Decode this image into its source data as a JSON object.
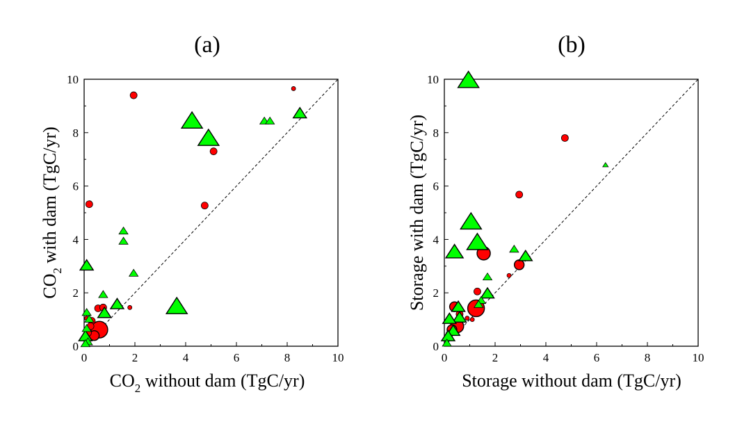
{
  "chart_data": [
    {
      "type": "scatter",
      "panel_label": "(a)",
      "xlabel_parts": [
        "CO",
        "2",
        " without dam (TgC/yr)"
      ],
      "ylabel_parts": [
        "CO",
        "2",
        " with dam (TgC/yr)"
      ],
      "xlim": [
        0,
        10
      ],
      "ylim": [
        0,
        10
      ],
      "xticks": [
        0,
        2,
        4,
        6,
        8,
        10
      ],
      "yticks": [
        0,
        2,
        4,
        6,
        8,
        10
      ],
      "reference_line": "1:1 dashed",
      "series": [
        {
          "name": "circles",
          "marker": "circle",
          "color": "#ff0000",
          "points": [
            {
              "x": 1.95,
              "y": 9.4,
              "s": 2
            },
            {
              "x": 8.25,
              "y": 9.65,
              "s": 1
            },
            {
              "x": 5.1,
              "y": 7.3,
              "s": 2
            },
            {
              "x": 0.2,
              "y": 5.32,
              "s": 2
            },
            {
              "x": 4.75,
              "y": 5.27,
              "s": 2
            },
            {
              "x": 0.55,
              "y": 1.42,
              "s": 2
            },
            {
              "x": 0.75,
              "y": 1.45,
              "s": 2
            },
            {
              "x": 0.3,
              "y": 0.95,
              "s": 2
            },
            {
              "x": 0.25,
              "y": 0.75,
              "s": 2
            },
            {
              "x": 0.6,
              "y": 0.62,
              "s": 5
            },
            {
              "x": 0.1,
              "y": 1.05,
              "s": 1
            },
            {
              "x": 1.8,
              "y": 1.45,
              "s": 1
            },
            {
              "x": 0.4,
              "y": 0.4,
              "s": 3
            },
            {
              "x": 0.15,
              "y": 0.5,
              "s": 2
            }
          ]
        },
        {
          "name": "triangles",
          "marker": "triangle",
          "color": "#00ff00",
          "points": [
            {
              "x": 4.25,
              "y": 8.4,
              "s": 5
            },
            {
              "x": 4.9,
              "y": 7.75,
              "s": 5
            },
            {
              "x": 8.5,
              "y": 8.7,
              "s": 3
            },
            {
              "x": 7.1,
              "y": 8.42,
              "s": 2
            },
            {
              "x": 7.32,
              "y": 8.42,
              "s": 2
            },
            {
              "x": 1.55,
              "y": 4.3,
              "s": 2
            },
            {
              "x": 1.55,
              "y": 3.92,
              "s": 2
            },
            {
              "x": 1.95,
              "y": 2.72,
              "s": 2
            },
            {
              "x": 0.1,
              "y": 3.0,
              "s": 3
            },
            {
              "x": 3.65,
              "y": 1.45,
              "s": 5
            },
            {
              "x": 0.75,
              "y": 1.92,
              "s": 2
            },
            {
              "x": 1.3,
              "y": 1.55,
              "s": 3
            },
            {
              "x": 0.8,
              "y": 1.22,
              "s": 3
            },
            {
              "x": 0.1,
              "y": 1.25,
              "s": 2
            },
            {
              "x": 0.2,
              "y": 1.0,
              "s": 2
            },
            {
              "x": 0.1,
              "y": 0.65,
              "s": 2
            },
            {
              "x": 0.05,
              "y": 0.35,
              "s": 3
            },
            {
              "x": 0.15,
              "y": 0.15,
              "s": 2
            },
            {
              "x": 0.05,
              "y": 0.08,
              "s": 2
            }
          ]
        }
      ]
    },
    {
      "type": "scatter",
      "panel_label": "(b)",
      "xlabel_parts": [
        "Storage without dam (TgC/yr)"
      ],
      "ylabel_parts": [
        "Storage with dam (TgC/yr)"
      ],
      "xlim": [
        0,
        10
      ],
      "ylim": [
        0,
        10
      ],
      "xticks": [
        0,
        2,
        4,
        6,
        8,
        10
      ],
      "yticks": [
        0,
        2,
        4,
        6,
        8,
        10
      ],
      "reference_line": "1:1 dashed",
      "series": [
        {
          "name": "circles",
          "marker": "circle",
          "color": "#ff0000",
          "points": [
            {
              "x": 4.75,
              "y": 7.8,
              "s": 2
            },
            {
              "x": 2.95,
              "y": 5.68,
              "s": 2
            },
            {
              "x": 1.55,
              "y": 3.48,
              "s": 4
            },
            {
              "x": 2.95,
              "y": 3.05,
              "s": 3
            },
            {
              "x": 2.55,
              "y": 2.65,
              "s": 1
            },
            {
              "x": 1.3,
              "y": 2.05,
              "s": 2
            },
            {
              "x": 0.4,
              "y": 1.48,
              "s": 3
            },
            {
              "x": 1.25,
              "y": 1.42,
              "s": 5
            },
            {
              "x": 0.6,
              "y": 1.2,
              "s": 2
            },
            {
              "x": 1.1,
              "y": 1.0,
              "s": 1
            },
            {
              "x": 0.9,
              "y": 1.05,
              "s": 1
            },
            {
              "x": 0.5,
              "y": 0.75,
              "s": 4
            },
            {
              "x": 0.3,
              "y": 0.62,
              "s": 3
            },
            {
              "x": 0.2,
              "y": 0.45,
              "s": 2
            }
          ]
        },
        {
          "name": "triangles",
          "marker": "triangle",
          "color": "#00ff00",
          "points": [
            {
              "x": 0.95,
              "y": 9.92,
              "s": 5
            },
            {
              "x": 6.35,
              "y": 6.78,
              "s": 1
            },
            {
              "x": 1.05,
              "y": 4.62,
              "s": 5
            },
            {
              "x": 1.3,
              "y": 3.85,
              "s": 5
            },
            {
              "x": 0.4,
              "y": 3.5,
              "s": 4
            },
            {
              "x": 2.75,
              "y": 3.62,
              "s": 2
            },
            {
              "x": 3.2,
              "y": 3.35,
              "s": 3
            },
            {
              "x": 1.7,
              "y": 2.58,
              "s": 2
            },
            {
              "x": 1.7,
              "y": 1.95,
              "s": 3
            },
            {
              "x": 1.45,
              "y": 1.7,
              "s": 2
            },
            {
              "x": 1.35,
              "y": 1.55,
              "s": 2
            },
            {
              "x": 0.55,
              "y": 1.45,
              "s": 3
            },
            {
              "x": 0.6,
              "y": 1.05,
              "s": 3
            },
            {
              "x": 0.2,
              "y": 1.0,
              "s": 3
            },
            {
              "x": 0.35,
              "y": 0.55,
              "s": 3
            },
            {
              "x": 0.15,
              "y": 0.35,
              "s": 3
            },
            {
              "x": 0.1,
              "y": 0.1,
              "s": 2
            }
          ]
        }
      ]
    }
  ]
}
